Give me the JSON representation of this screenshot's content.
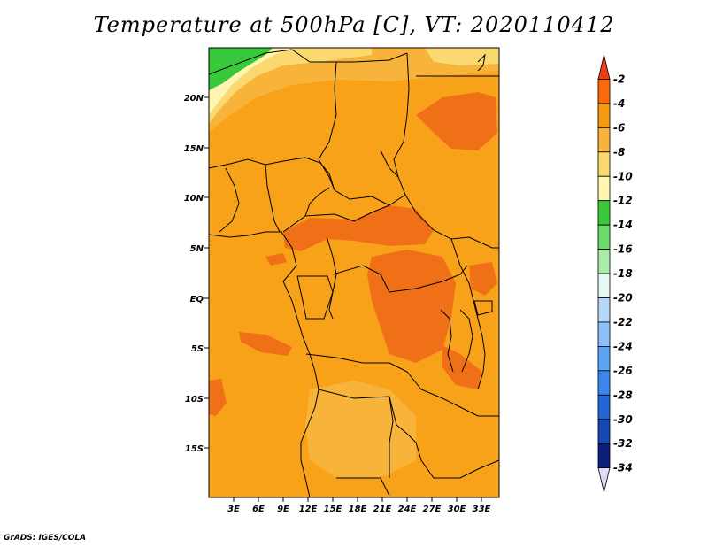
{
  "title": "Temperature at 500hPa [C], VT: 2020110412",
  "credit": "GrADS: IGES/COLA",
  "map": {
    "lat_labels": [
      "20N",
      "15N",
      "10N",
      "5N",
      "EQ",
      "5S",
      "10S",
      "15S"
    ],
    "lon_labels": [
      "3E",
      "6E",
      "9E",
      "12E",
      "15E",
      "18E",
      "21E",
      "24E",
      "27E",
      "30E",
      "33E"
    ]
  },
  "colorbar": {
    "labels": [
      "-2",
      "-4",
      "-6",
      "-8",
      "-10",
      "-12",
      "-14",
      "-16",
      "-18",
      "-20",
      "-22",
      "-24",
      "-26",
      "-28",
      "-30",
      "-32",
      "-34"
    ],
    "colors": [
      "#f03c14",
      "#fa6a0a",
      "#f59a12",
      "#f8b33a",
      "#fada70",
      "#fff5b0",
      "#38c83c",
      "#6adc6a",
      "#a8eca8",
      "#e4f8f4",
      "#b4d8f8",
      "#8cc0f8",
      "#5ca4f4",
      "#3a86ec",
      "#2466d8",
      "#1448b4",
      "#0c1e7c",
      "#dcdcf8"
    ]
  }
}
